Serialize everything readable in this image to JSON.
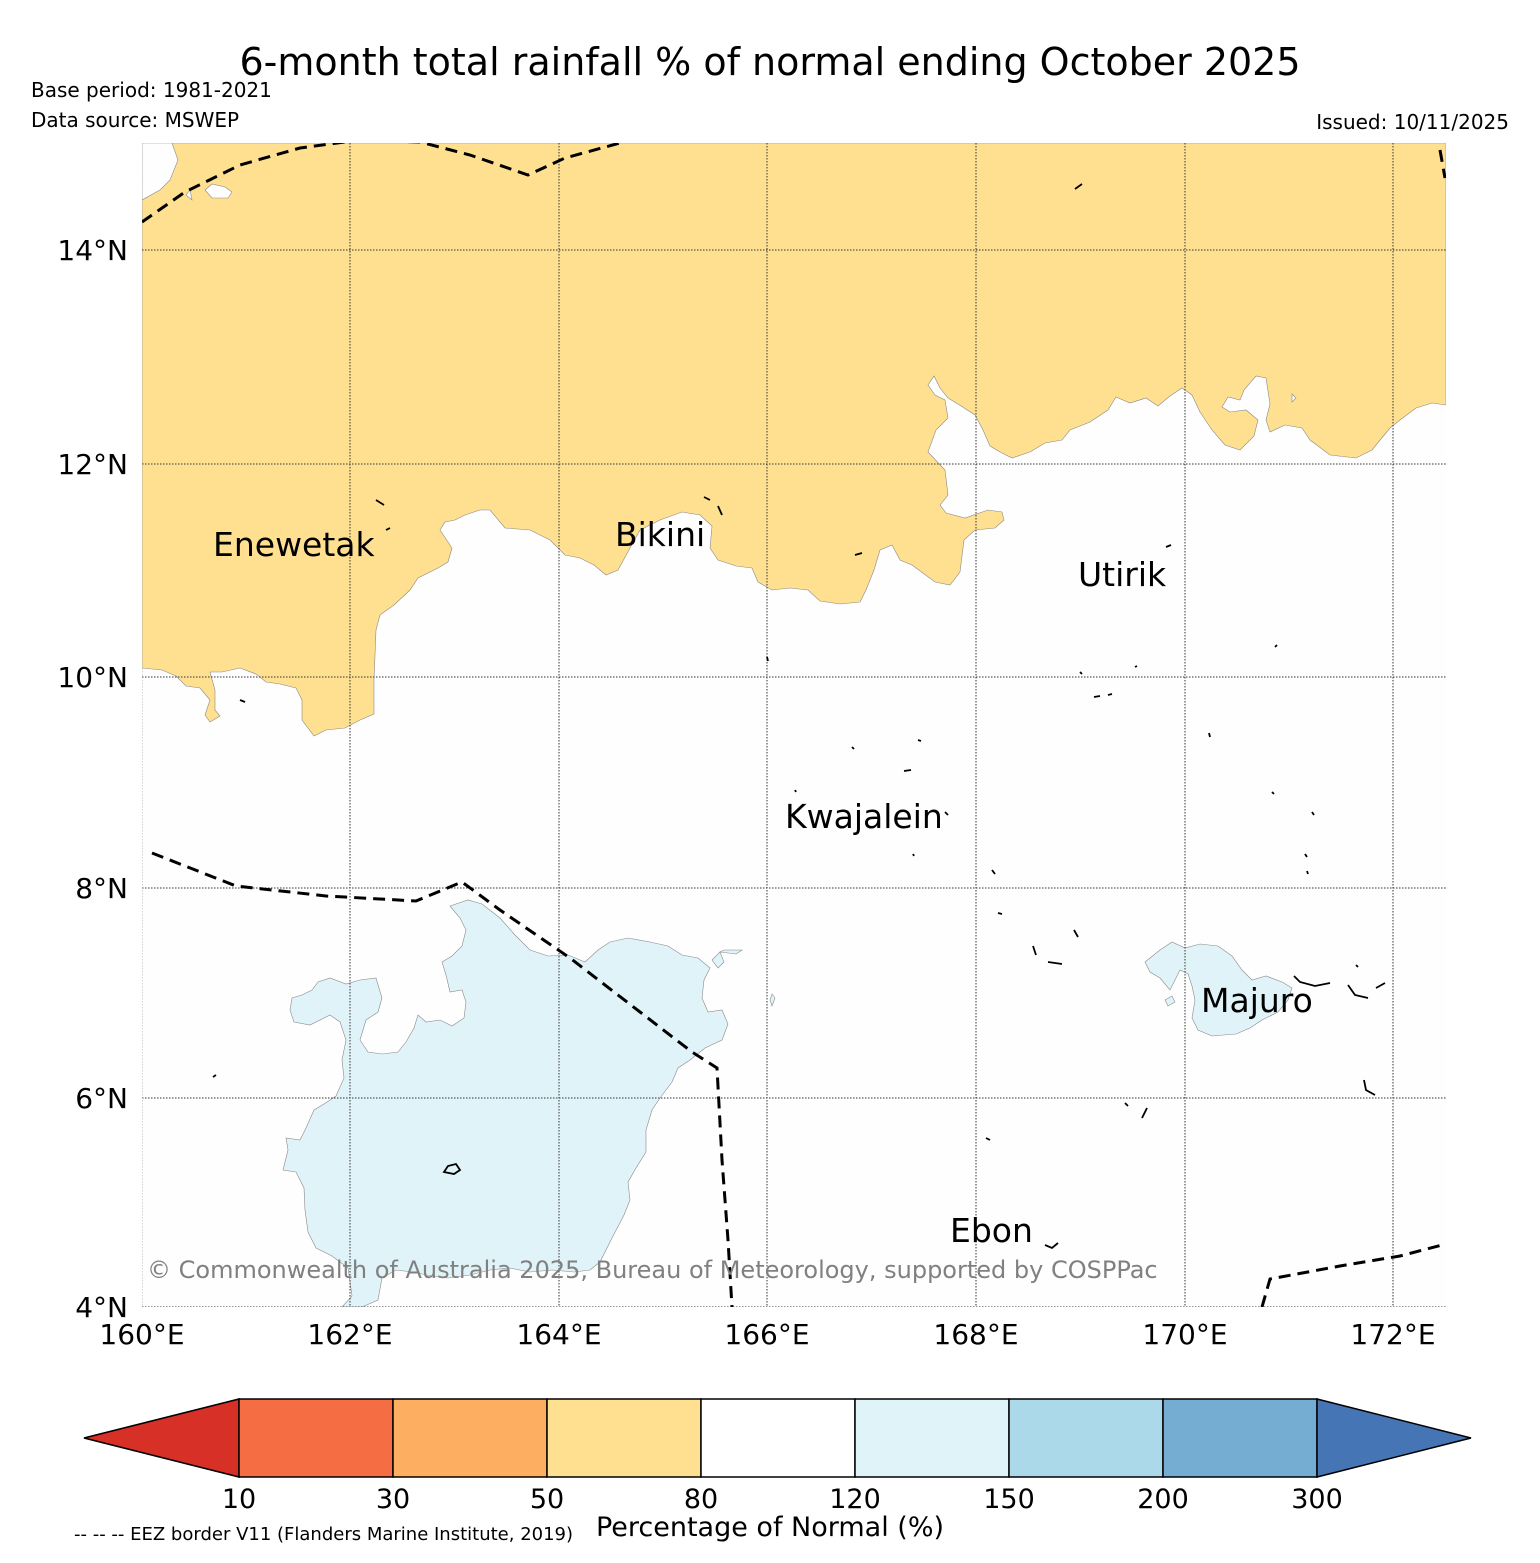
{
  "title": "6-month total rainfall % of normal ending October 2025",
  "base_period": "Base period: 1981-2021",
  "data_source": "Data source: MSWEP",
  "issued": "Issued: 10/11/2025",
  "map": {
    "lat_labels": [
      "14°N",
      "12°N",
      "10°N",
      "8°N",
      "6°N",
      "4°N"
    ],
    "lon_labels": [
      "160°E",
      "162°E",
      "164°E",
      "166°E",
      "168°E",
      "170°E",
      "172°E"
    ],
    "places": {
      "enewetak": "Enewetak",
      "bikini": "Bikini",
      "utirik": "Utirik",
      "kwajalein": "Kwajalein",
      "majuro": "Majuro",
      "ebon": "Ebon"
    },
    "copyright": "© Commonwealth of Australia 2025, Bureau of Meteorology, supported by COSPPac"
  },
  "colorbar": {
    "ticks": [
      "10",
      "30",
      "50",
      "80",
      "120",
      "150",
      "200",
      "300"
    ],
    "colors": [
      "#d73027",
      "#f46d43",
      "#fdae61",
      "#fee090",
      "#ffffff",
      "#e0f3f8",
      "#abd9e9",
      "#74add1",
      "#4575b4"
    ],
    "label": "Percentage of Normal (%)"
  },
  "eez_note": "-- -- -- EEZ border V11 (Flanders Marine Institute, 2019)"
}
